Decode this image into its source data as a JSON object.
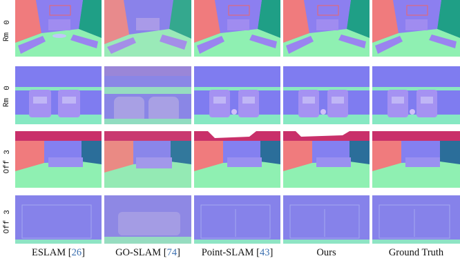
{
  "rows": [
    {
      "scene": "Rm",
      "index": "0"
    },
    {
      "scene": "Rm",
      "index": "0"
    },
    {
      "scene": "Off",
      "index": "3"
    },
    {
      "scene": "Off",
      "index": "3"
    }
  ],
  "columns": [
    {
      "name": "ESLAM",
      "cite": "26"
    },
    {
      "name": "GO-SLAM",
      "cite": "74"
    },
    {
      "name": "Point-SLAM",
      "cite": "43"
    },
    {
      "name": "Ours",
      "cite": ""
    },
    {
      "name": "Ground Truth",
      "cite": ""
    }
  ],
  "colors": {
    "normal_blue": "#7f7ff4",
    "normal_pink": "#f07a7c",
    "normal_green": "#80f0a8",
    "normal_teal": "#1fa085"
  }
}
